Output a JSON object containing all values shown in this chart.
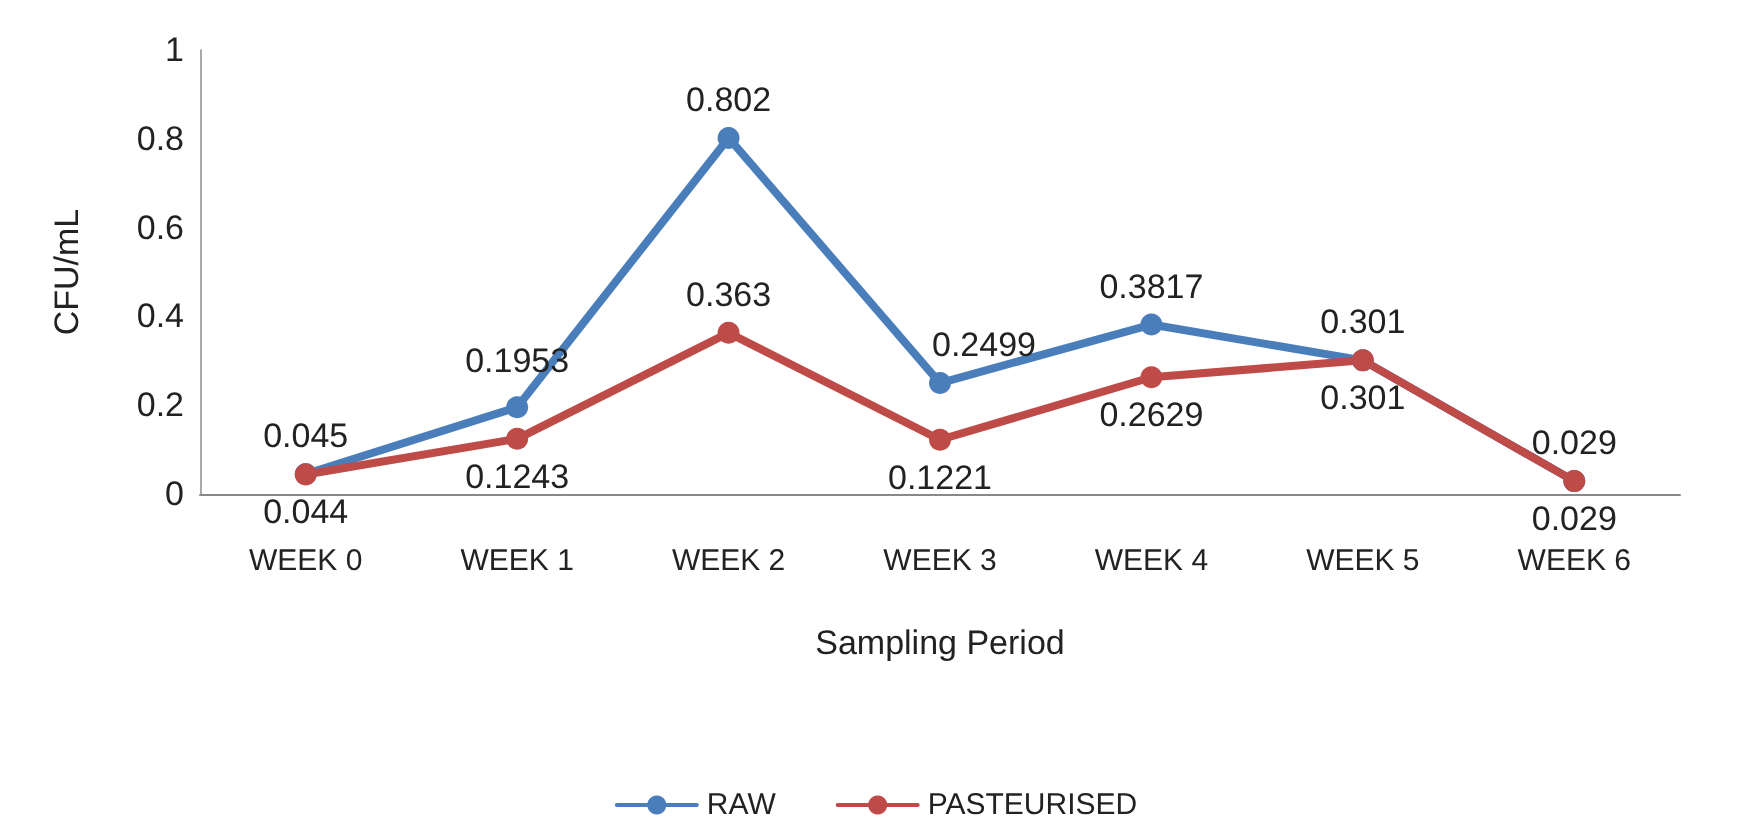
{
  "chart_data": {
    "type": "line",
    "xlabel": "Sampling Period",
    "ylabel": "CFU/mL",
    "categories": [
      "WEEK 0",
      "WEEK 1",
      "WEEK 2",
      "WEEK 3",
      "WEEK 4",
      "WEEK 5",
      "WEEK 6"
    ],
    "series": [
      {
        "name": "RAW",
        "color": "#4a7ebb",
        "values": [
          0.045,
          0.1953,
          0.802,
          0.2499,
          0.3817,
          0.301,
          0.029
        ]
      },
      {
        "name": "PASTEURISED",
        "color": "#be4b48",
        "values": [
          0.044,
          0.1243,
          0.363,
          0.1221,
          0.2629,
          0.301,
          0.029
        ]
      }
    ],
    "ylim": [
      0,
      1
    ],
    "yticks": [
      0,
      0.2,
      0.4,
      0.6,
      0.8,
      1
    ],
    "grid": false,
    "legend": "bottom",
    "marker": "circle",
    "line_style": "solid",
    "data_labels": true
  }
}
